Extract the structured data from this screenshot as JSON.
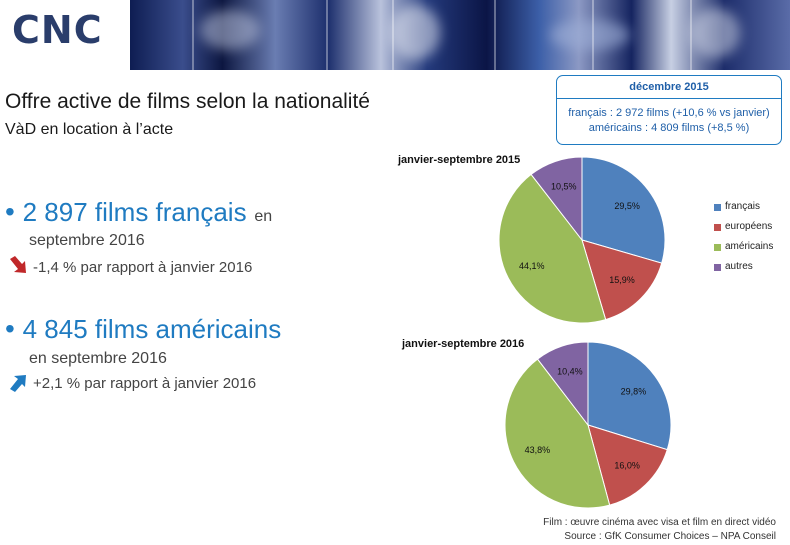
{
  "header": {
    "logo": "CNC"
  },
  "title": "Offre active de films selon la nationalité",
  "subtitle": "VàD en location à l’acte",
  "bullets": [
    {
      "main": "2 897 films français",
      "suffix": "en",
      "line2": "septembre 2016",
      "change": "-1,4 % par rapport à janvier 2016",
      "trend": "down",
      "trend_color": "#c0282a"
    },
    {
      "main": "4 845 films américains",
      "suffix": "",
      "line2": "en septembre 2016",
      "change": "+2,1 % par rapport à janvier 2016",
      "trend": "up",
      "trend_color": "#1f7bc1"
    }
  ],
  "callout": {
    "heading": "décembre 2015",
    "line1": "français : 2 972 films (+10,6 % vs janvier)",
    "line2": "américains : 4 809 films (+8,5 %)"
  },
  "legend": [
    {
      "label": "français",
      "color": "#4f81bd"
    },
    {
      "label": "européens",
      "color": "#c0504d"
    },
    {
      "label": "américains",
      "color": "#9bbb59"
    },
    {
      "label": "autres",
      "color": "#8064a2"
    }
  ],
  "chart_data": [
    {
      "type": "pie",
      "title": "janvier-septembre 2015",
      "categories": [
        "français",
        "européens",
        "américains",
        "autres"
      ],
      "values": [
        29.5,
        15.9,
        44.1,
        10.5
      ],
      "labels": [
        "29,5%",
        "15,9%",
        "44,1%",
        "10,5%"
      ],
      "colors": [
        "#4f81bd",
        "#c0504d",
        "#9bbb59",
        "#8064a2"
      ]
    },
    {
      "type": "pie",
      "title": "janvier-septembre 2016",
      "categories": [
        "français",
        "européens",
        "américains",
        "autres"
      ],
      "values": [
        29.8,
        16.0,
        43.8,
        10.4
      ],
      "labels": [
        "29,8%",
        "16,0%",
        "43,8%",
        "10,4%"
      ],
      "colors": [
        "#4f81bd",
        "#c0504d",
        "#9bbb59",
        "#8064a2"
      ]
    }
  ],
  "footer": {
    "line1": "Film : œuvre cinéma avec visa et film en direct vidéo",
    "line2": "Source : GfK Consumer Choices – NPA Conseil"
  }
}
